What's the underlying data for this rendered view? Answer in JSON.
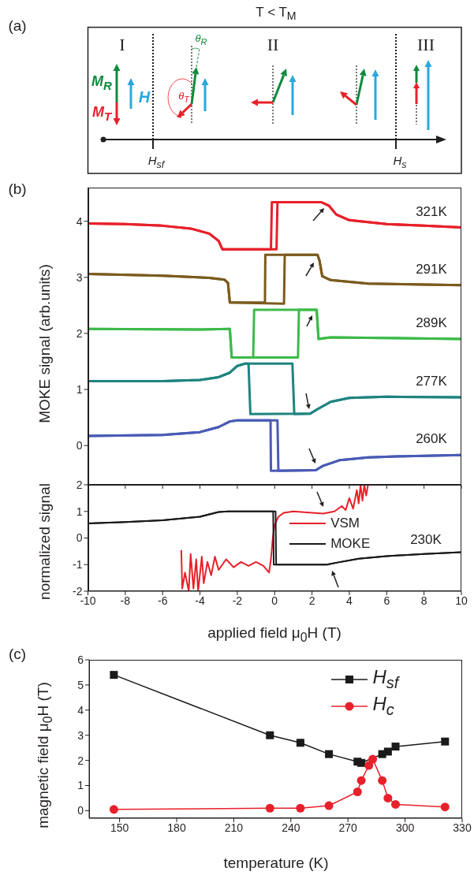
{
  "chart_data": [
    {
      "type": "other",
      "title": "T < T$_{M}$",
      "annotations": [
        "(a)",
        "I",
        "II",
        "III",
        "M$_{R}$",
        "M$_{T}$",
        "H",
        "θ$_{R}$",
        "θ$_{T}$",
        "H$_{sf}$",
        "H$_{s}$"
      ]
    },
    {
      "type": "line",
      "ylabel": "MOKE signal (arb.units)",
      "annotations": [
        "(b)"
      ],
      "xlim": [
        -10,
        10
      ],
      "xticks": [
        -10,
        -8,
        -6,
        -4,
        -2,
        0,
        2,
        4,
        6,
        8,
        10
      ],
      "ylim": [
        -0.7,
        4.6
      ],
      "yticks": [
        0,
        1,
        2,
        3,
        4
      ],
      "tick_labels": "y",
      "series": [
        {
          "name": "321K",
          "color": "#e8202a",
          "x": [
            -10,
            -8,
            -6,
            -4.5,
            -3.5,
            -3.0,
            -2.8,
            -1,
            0.1,
            0.15,
            2.5,
            2.9,
            3.3,
            4,
            6,
            8,
            10
          ],
          "values": [
            3.96,
            3.95,
            3.92,
            3.87,
            3.78,
            3.65,
            3.5,
            3.5,
            3.5,
            4.34,
            4.34,
            4.28,
            4.12,
            4.02,
            3.95,
            3.92,
            3.89
          ]
        },
        {
          "color": "#e8202a",
          "x": [
            -10,
            -8,
            -6,
            -4.5,
            -3.5,
            -3.0,
            -2.8,
            -0.2,
            -0.15,
            2.5,
            2.9,
            3.3,
            4,
            6,
            8,
            10
          ],
          "values": [
            3.96,
            3.95,
            3.92,
            3.87,
            3.78,
            3.65,
            3.5,
            3.5,
            4.34,
            4.34,
            4.28,
            4.12,
            4.02,
            3.95,
            3.92,
            3.89
          ]
        },
        {
          "name": "291K",
          "color": "#7b5b1e",
          "x": [
            -10,
            -6,
            -3.5,
            -2.7,
            -2.5,
            -2.4,
            0.5,
            0.54,
            2.3,
            2.4,
            2.55,
            3,
            5,
            10
          ],
          "values": [
            3.06,
            3.03,
            2.99,
            2.96,
            2.9,
            2.55,
            2.53,
            3.4,
            3.4,
            3.3,
            3.02,
            2.95,
            2.89,
            2.86
          ]
        },
        {
          "color": "#7b5b1e",
          "x": [
            -10,
            -6,
            -3.5,
            -2.7,
            -2.5,
            -2.4,
            -0.52,
            -0.5,
            2.3,
            2.4,
            2.55,
            3,
            5,
            10
          ],
          "values": [
            3.06,
            3.03,
            2.99,
            2.96,
            2.9,
            2.55,
            2.55,
            3.4,
            3.4,
            3.3,
            3.02,
            2.95,
            2.89,
            2.86
          ]
        },
        {
          "name": "289K",
          "color": "#3dba4a",
          "x": [
            -10,
            -4,
            -2.4,
            -2.3,
            1.25,
            1.3,
            2.25,
            2.35,
            3,
            10
          ],
          "values": [
            2.08,
            2.07,
            2.08,
            1.57,
            1.57,
            2.42,
            2.42,
            1.9,
            1.93,
            1.9
          ]
        },
        {
          "color": "#3dba4a",
          "x": [
            -10,
            -4,
            -2.4,
            -2.3,
            -1.15,
            -1.1,
            2.25,
            2.35,
            3,
            10
          ],
          "values": [
            2.08,
            2.07,
            2.08,
            1.57,
            1.57,
            2.42,
            2.42,
            1.9,
            1.93,
            1.9
          ]
        },
        {
          "name": "277K",
          "color": "#1f8480",
          "x": [
            -10,
            -6,
            -4,
            -3,
            -2.4,
            -2,
            -1.6,
            0.95,
            1.05,
            1.9,
            2.3,
            3,
            4,
            6,
            10
          ],
          "values": [
            1.15,
            1.15,
            1.17,
            1.22,
            1.3,
            1.42,
            1.46,
            1.46,
            0.56,
            0.57,
            0.65,
            0.78,
            0.85,
            0.87,
            0.86
          ]
        },
        {
          "color": "#1f8480",
          "x": [
            -10,
            -6,
            -4,
            -3,
            -2.4,
            -2,
            -1.6,
            -1.4,
            -1.3,
            1.9,
            2.3,
            3,
            4,
            6,
            10
          ],
          "values": [
            1.15,
            1.15,
            1.17,
            1.22,
            1.3,
            1.42,
            1.46,
            1.46,
            0.56,
            0.57,
            0.65,
            0.78,
            0.85,
            0.87,
            0.86
          ]
        },
        {
          "name": "260K",
          "color": "#4a5bb5",
          "x": [
            -10,
            -6,
            -4,
            -3,
            -2.4,
            -2,
            0.15,
            0.2,
            2.2,
            2.6,
            3.5,
            5,
            7,
            10
          ],
          "values": [
            0.17,
            0.19,
            0.24,
            0.33,
            0.43,
            0.45,
            0.45,
            -0.45,
            -0.44,
            -0.36,
            -0.26,
            -0.21,
            -0.19,
            -0.17
          ]
        },
        {
          "color": "#4a5bb5",
          "x": [
            -10,
            -6,
            -4,
            -3,
            -2.4,
            -2,
            -0.22,
            -0.2,
            2.2,
            2.6,
            3.5,
            5,
            7,
            10
          ],
          "values": [
            0.17,
            0.19,
            0.24,
            0.33,
            0.43,
            0.45,
            0.45,
            -0.45,
            -0.44,
            -0.36,
            -0.26,
            -0.21,
            -0.19,
            -0.17
          ]
        }
      ]
    },
    {
      "type": "line",
      "ylabel": "normalized signal",
      "xlabel": "applied field μ$_{0}$H (T)",
      "annotations": [
        "230K"
      ],
      "legend": "center",
      "xlim": [
        -10,
        10
      ],
      "xticks": [
        -10,
        -8,
        -6,
        -4,
        -2,
        0,
        2,
        4,
        6,
        8,
        10
      ],
      "ylim": [
        -2,
        2
      ],
      "yticks": [
        -2,
        -1,
        0,
        1,
        2
      ],
      "series": [
        {
          "name": "VSM",
          "color": "#e8202a",
          "x": [
            -5,
            -4.95,
            -4.8,
            -4.6,
            -4.5,
            -4.35,
            -4.2,
            -4.1,
            -3.9,
            -3.8,
            -3.6,
            -3.4,
            -3.2,
            -3,
            -2.6,
            -2.2,
            -1.8,
            -1.4,
            -1,
            -0.6,
            -0.3,
            -0.2,
            -0.1,
            0,
            0.2,
            0.5,
            1,
            2,
            2.6,
            3.2,
            3.6,
            3.8,
            4,
            4.2,
            4.4,
            4.5,
            4.6,
            4.7,
            4.8,
            4.9,
            5
          ],
          "values": [
            -0.45,
            -1.9,
            -1.3,
            -2,
            -0.6,
            -1.9,
            -0.8,
            -2,
            -0.7,
            -1.7,
            -0.9,
            -1.4,
            -0.7,
            -1.2,
            -0.8,
            -1.1,
            -0.9,
            -1.05,
            -0.9,
            -1.05,
            -1.3,
            -0.8,
            0,
            0.5,
            0.8,
            0.95,
            1.0,
            0.95,
            0.92,
            1.0,
            1.2,
            1.05,
            1.5,
            1.1,
            1.8,
            1.3,
            2.0,
            1.4,
            2.0,
            1.6,
            2.0
          ]
        },
        {
          "name": "MOKE",
          "color": "#1a1a1a",
          "x": [
            -10,
            -8,
            -6,
            -4,
            -3,
            -2.5,
            0.05,
            0.08,
            2.8,
            3.3,
            4.5,
            6,
            8,
            10
          ],
          "values": [
            0.55,
            0.6,
            0.67,
            0.8,
            0.98,
            1.0,
            1.0,
            -1.0,
            -1.0,
            -0.93,
            -0.78,
            -0.68,
            -0.6,
            -0.53
          ]
        },
        {
          "color": "#1a1a1a",
          "x": [
            -10,
            -8,
            -6,
            -4,
            -3,
            -2.5,
            -0.08,
            -0.05,
            2.8,
            3.3,
            4.5,
            6,
            8,
            10
          ],
          "values": [
            0.55,
            0.6,
            0.67,
            0.8,
            0.98,
            1.0,
            1.0,
            -1.0,
            -1.0,
            -0.93,
            -0.78,
            -0.68,
            -0.6,
            -0.53
          ]
        }
      ]
    },
    {
      "type": "line",
      "ylabel": "magnetic field μ$_{0}$H (T)",
      "xlabel": "temperature (K)",
      "annotations": [
        "(c)"
      ],
      "legend": "top right",
      "xlim": [
        134,
        330
      ],
      "xticks": [
        150,
        180,
        210,
        240,
        270,
        300,
        330
      ],
      "ylim": [
        -0.3,
        6
      ],
      "yticks": [
        0,
        1,
        2,
        3,
        4,
        5,
        6
      ],
      "series": [
        {
          "name": "H$_{sf}$",
          "color": "#1a1a1a",
          "marker": "square",
          "x": [
            147,
            229,
            245,
            260,
            275,
            277,
            288,
            291,
            295,
            321
          ],
          "values": [
            5.4,
            3.0,
            2.7,
            2.25,
            1.95,
            1.9,
            2.25,
            2.35,
            2.55,
            2.75
          ]
        },
        {
          "name": "H$_{c}$",
          "color": "#e8202a",
          "marker": "circle",
          "x": [
            147,
            229,
            245,
            260,
            275,
            277,
            281,
            283,
            288,
            291,
            295,
            321
          ],
          "values": [
            0.05,
            0.1,
            0.1,
            0.2,
            0.75,
            1.2,
            1.8,
            2.05,
            1.2,
            0.5,
            0.25,
            0.15
          ]
        }
      ]
    }
  ]
}
